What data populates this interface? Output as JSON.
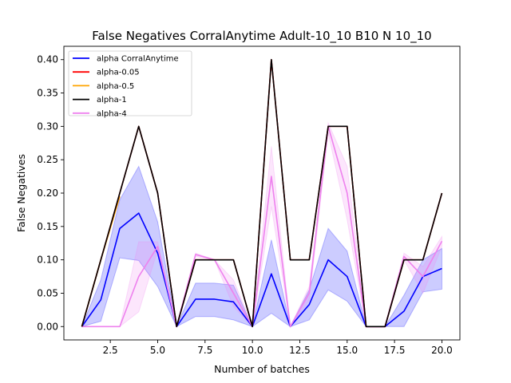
{
  "chart_data": {
    "type": "line",
    "title": "False Negatives CorralAnytime Adult-10_10 B10 N 10_10",
    "xlabel": "Number of batches",
    "ylabel": "False Negatives",
    "xlim": [
      0.05,
      20.95
    ],
    "ylim": [
      -0.02,
      0.42
    ],
    "xticks": [
      2.5,
      5.0,
      7.5,
      10.0,
      12.5,
      15.0,
      17.5,
      20.0
    ],
    "xtick_labels": [
      "2.5",
      "5.0",
      "7.5",
      "10.0",
      "12.5",
      "15.0",
      "17.5",
      "20.0"
    ],
    "yticks": [
      0.0,
      0.05,
      0.1,
      0.15,
      0.2,
      0.25,
      0.3,
      0.35,
      0.4
    ],
    "ytick_labels": [
      "0.00",
      "0.05",
      "0.10",
      "0.15",
      "0.20",
      "0.25",
      "0.30",
      "0.35",
      "0.40"
    ],
    "legend_position": "top-left",
    "series": [
      {
        "name": "alpha CorralAnytime",
        "color": "#0000ff",
        "x": [
          1,
          2,
          3,
          4,
          5,
          6,
          7,
          8,
          9,
          10,
          11,
          12,
          13,
          14,
          15,
          16,
          17,
          18,
          19,
          20
        ],
        "values": [
          0.0,
          0.04,
          0.147,
          0.17,
          0.11,
          0.0,
          0.041,
          0.041,
          0.037,
          0.0,
          0.079,
          0.0,
          0.033,
          0.1,
          0.075,
          0.0,
          0.0,
          0.023,
          0.075,
          0.087
        ],
        "band_lower": [
          0.0,
          0.008,
          0.103,
          0.099,
          0.06,
          0.0,
          0.015,
          0.015,
          0.01,
          0.0,
          0.02,
          0.0,
          0.01,
          0.055,
          0.038,
          0.0,
          0.0,
          0.0,
          0.052,
          0.056
        ],
        "band_upper": [
          0.0,
          0.07,
          0.19,
          0.24,
          0.157,
          0.0,
          0.065,
          0.065,
          0.062,
          0.0,
          0.13,
          0.0,
          0.055,
          0.147,
          0.113,
          0.0,
          0.0,
          0.047,
          0.1,
          0.117
        ]
      },
      {
        "name": "alpha-0.05",
        "color": "#ff0000",
        "x": [
          1,
          2,
          3,
          4,
          5,
          6,
          7,
          8,
          9,
          10,
          11,
          12,
          13,
          14,
          15,
          16,
          17,
          18,
          19,
          20
        ],
        "values": [
          0.0,
          0.1,
          0.2,
          0.3,
          0.2,
          0.0,
          0.1,
          0.1,
          0.1,
          0.0,
          0.4,
          0.1,
          0.1,
          0.3,
          0.3,
          0.0,
          0.0,
          0.1,
          0.1,
          0.2
        ]
      },
      {
        "name": "alpha-0.5",
        "color": "#ffa500",
        "x": [
          1,
          2,
          3
        ],
        "values": [
          0.0,
          0.1,
          0.195
        ]
      },
      {
        "name": "alpha-1",
        "color": "#000000",
        "x": [
          1,
          2,
          3,
          4,
          5,
          6,
          7,
          8,
          9,
          10,
          11,
          12,
          13,
          14,
          15,
          16,
          17,
          18,
          19,
          20
        ],
        "values": [
          0.0,
          0.1,
          0.2,
          0.3,
          0.2,
          0.0,
          0.1,
          0.1,
          0.1,
          0.0,
          0.4,
          0.1,
          0.1,
          0.3,
          0.3,
          0.0,
          0.0,
          0.1,
          0.1,
          0.2
        ]
      },
      {
        "name": "alpha-4",
        "color": "#ee82ee",
        "x": [
          1,
          2,
          3,
          4,
          5,
          6,
          7,
          8,
          9,
          10,
          11,
          12,
          13,
          14,
          15,
          16,
          17,
          18,
          19,
          20
        ],
        "values": [
          0.0,
          0.0,
          0.0,
          0.075,
          0.12,
          0.0,
          0.108,
          0.1,
          0.05,
          0.0,
          0.225,
          0.0,
          0.05,
          0.3,
          0.2,
          0.0,
          0.0,
          0.105,
          0.075,
          0.128
        ],
        "band_lower": [
          0.0,
          0.0,
          0.0,
          0.022,
          0.115,
          0.0,
          0.105,
          0.1,
          0.03,
          0.0,
          0.18,
          0.0,
          0.04,
          0.29,
          0.16,
          0.0,
          0.0,
          0.1,
          0.05,
          0.12
        ],
        "band_upper": [
          0.0,
          0.0,
          0.0,
          0.127,
          0.127,
          0.0,
          0.11,
          0.1,
          0.07,
          0.0,
          0.27,
          0.0,
          0.06,
          0.305,
          0.24,
          0.0,
          0.0,
          0.11,
          0.09,
          0.135
        ]
      }
    ]
  }
}
